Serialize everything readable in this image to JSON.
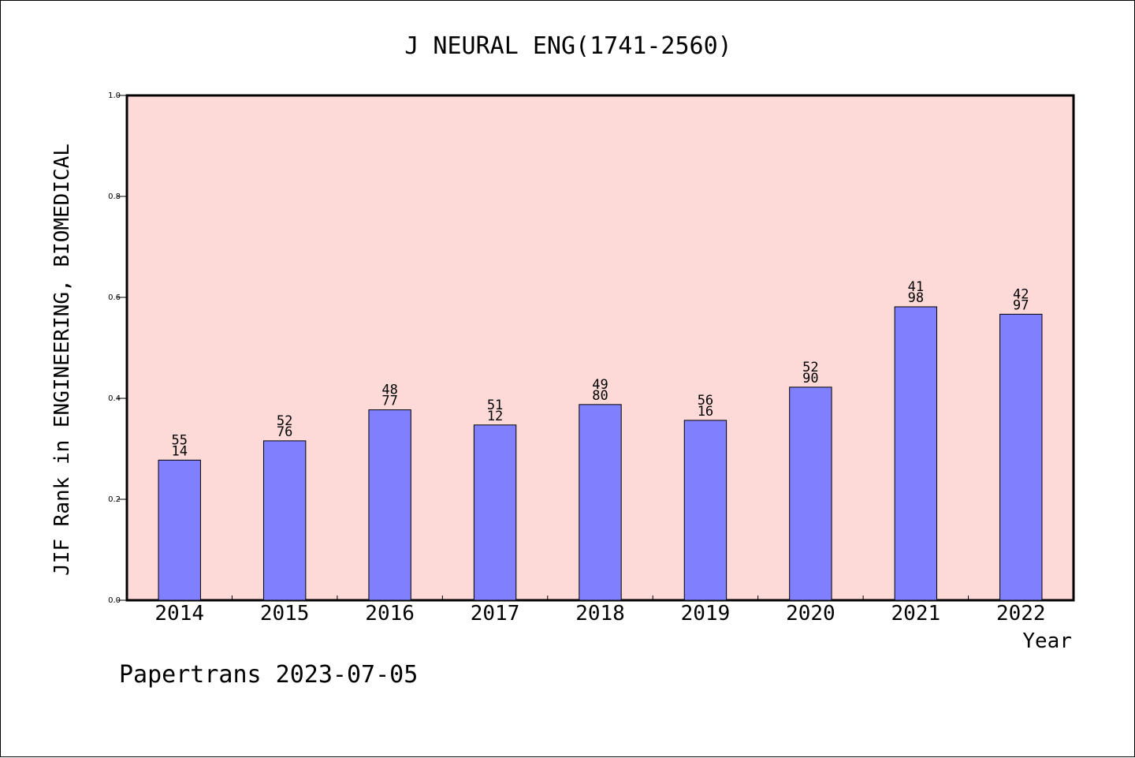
{
  "chart_data": {
    "type": "bar",
    "title": "J NEURAL ENG(1741-2560)",
    "xlabel": "Year",
    "ylabel": "JIF Rank in ENGINEERING, BIOMEDICAL",
    "categories": [
      "2014",
      "2015",
      "2016",
      "2017",
      "2018",
      "2019",
      "2020",
      "2021",
      "2022"
    ],
    "values": [
      0.2776,
      0.3158,
      0.3772,
      0.3472,
      0.3877,
      0.3564,
      0.4221,
      0.5813,
      0.5666
    ],
    "data_labels": [
      [
        "55",
        "14"
      ],
      [
        "52",
        "76"
      ],
      [
        "48",
        "77"
      ],
      [
        "51",
        "12"
      ],
      [
        "49",
        "80"
      ],
      [
        "56",
        "16"
      ],
      [
        "52",
        "90"
      ],
      [
        "41",
        "98"
      ],
      [
        "42",
        "97"
      ]
    ],
    "ylim": [
      0,
      1
    ],
    "yticks": [
      "0.0",
      "0.2",
      "0.4",
      "0.6",
      "0.8",
      "1.0"
    ],
    "grid": false,
    "footer": "Papertrans 2023-07-05",
    "colors": {
      "bar": "#8080ff",
      "plot_bg": "#fddad7",
      "axis": "#000000"
    }
  }
}
